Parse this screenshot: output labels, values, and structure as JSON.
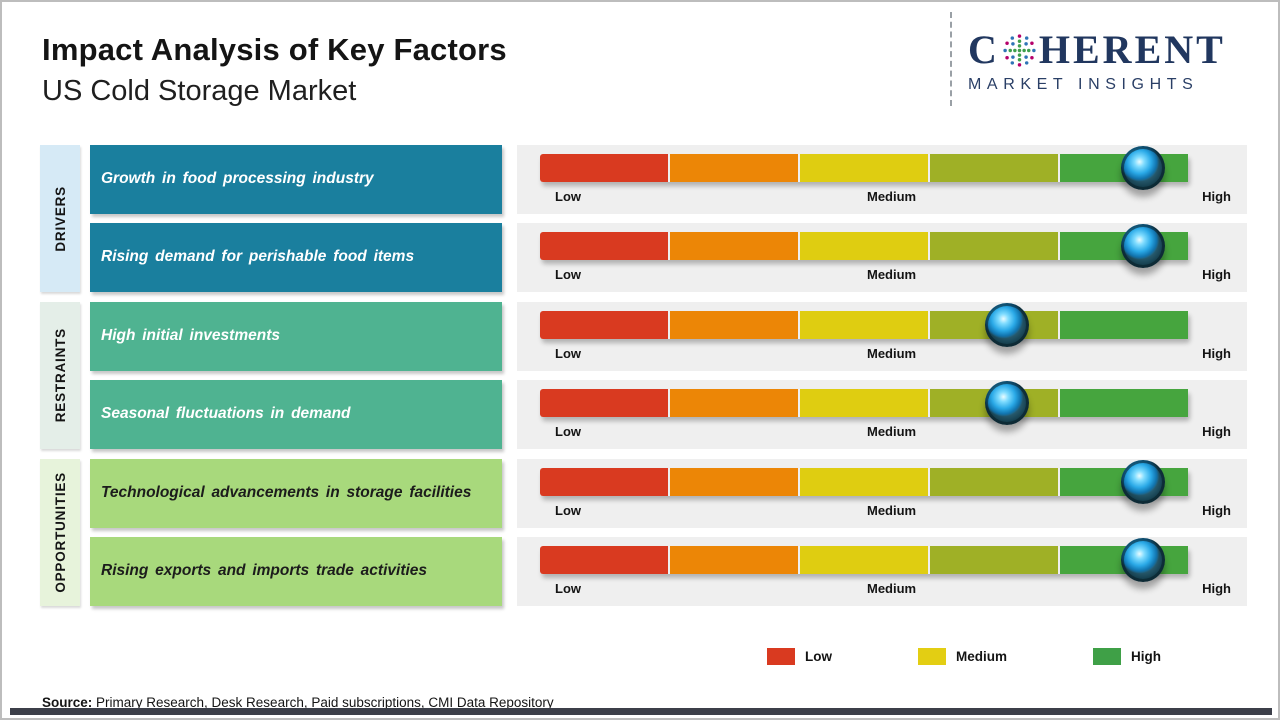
{
  "header": {
    "title": "Impact Analysis of Key Factors",
    "subtitle": "US Cold Storage Market",
    "logo": {
      "letter": "C",
      "rest": "HERENT",
      "tagline": "MARKET INSIGHTS",
      "brand_color": "#21375F"
    }
  },
  "scale": {
    "labels": [
      "Low",
      "Medium",
      "High"
    ],
    "segment_colors": [
      "#D93A20",
      "#EC8606",
      "#DFCD11",
      "#9FB026",
      "#46A53E"
    ]
  },
  "categories": [
    {
      "label": "DRIVERS",
      "tab_color": "#D6EAF6",
      "box_color": "#1A7F9E",
      "box_text_color": "#FFFFFF",
      "factors": [
        {
          "label": "Growth in food processing industry",
          "impact_level": "High",
          "marker_percent": 93
        },
        {
          "label": "Rising demand for perishable food items",
          "impact_level": "High",
          "marker_percent": 93
        }
      ]
    },
    {
      "label": "RESTRAINTS",
      "tab_color": "#E4EEE8",
      "box_color": "#4FB391",
      "box_text_color": "#FFFFFF",
      "factors": [
        {
          "label": "High initial investments",
          "impact_level": "Medium-High",
          "marker_percent": 72
        },
        {
          "label": "Seasonal fluctuations in demand",
          "impact_level": "Medium-High",
          "marker_percent": 72
        }
      ]
    },
    {
      "label": "OPPORTUNITIES",
      "tab_color": "#E7F3DB",
      "box_color": "#A8D97C",
      "box_text_color": "#1C1C1C",
      "factors": [
        {
          "label": "Technological advancements in storage facilities",
          "impact_level": "High",
          "marker_percent": 93
        },
        {
          "label": "Rising exports and imports trade activities",
          "impact_level": "High",
          "marker_percent": 93
        }
      ]
    }
  ],
  "legend": [
    {
      "label": "Low",
      "color": "#D93A20"
    },
    {
      "label": "Medium",
      "color": "#E3CE13"
    },
    {
      "label": "High",
      "color": "#3FA047"
    }
  ],
  "source": {
    "prefix": "Source:",
    "text": " Primary Research, Desk Research, Paid subscriptions, CMI Data Repository"
  },
  "chart_data": {
    "type": "table",
    "title": "Impact Analysis of Key Factors",
    "subtitle": "US Cold Storage Market",
    "scale": [
      "Low",
      "Medium",
      "High"
    ],
    "rows": [
      {
        "category": "Drivers",
        "factor": "Growth in food processing industry",
        "impact": "High",
        "scale_position_pct": 93
      },
      {
        "category": "Drivers",
        "factor": "Rising demand for perishable food items",
        "impact": "High",
        "scale_position_pct": 93
      },
      {
        "category": "Restraints",
        "factor": "High initial investments",
        "impact": "Medium-High",
        "scale_position_pct": 72
      },
      {
        "category": "Restraints",
        "factor": "Seasonal fluctuations in demand",
        "impact": "Medium-High",
        "scale_position_pct": 72
      },
      {
        "category": "Opportunities",
        "factor": "Technological advancements in storage facilities",
        "impact": "High",
        "scale_position_pct": 93
      },
      {
        "category": "Opportunities",
        "factor": "Rising exports and imports trade activities",
        "impact": "High",
        "scale_position_pct": 93
      }
    ],
    "legend_entries": [
      "Low",
      "Medium",
      "High"
    ],
    "layout": {
      "bar_segments": 5,
      "legend_position": "bottom-right",
      "grid": false
    }
  }
}
